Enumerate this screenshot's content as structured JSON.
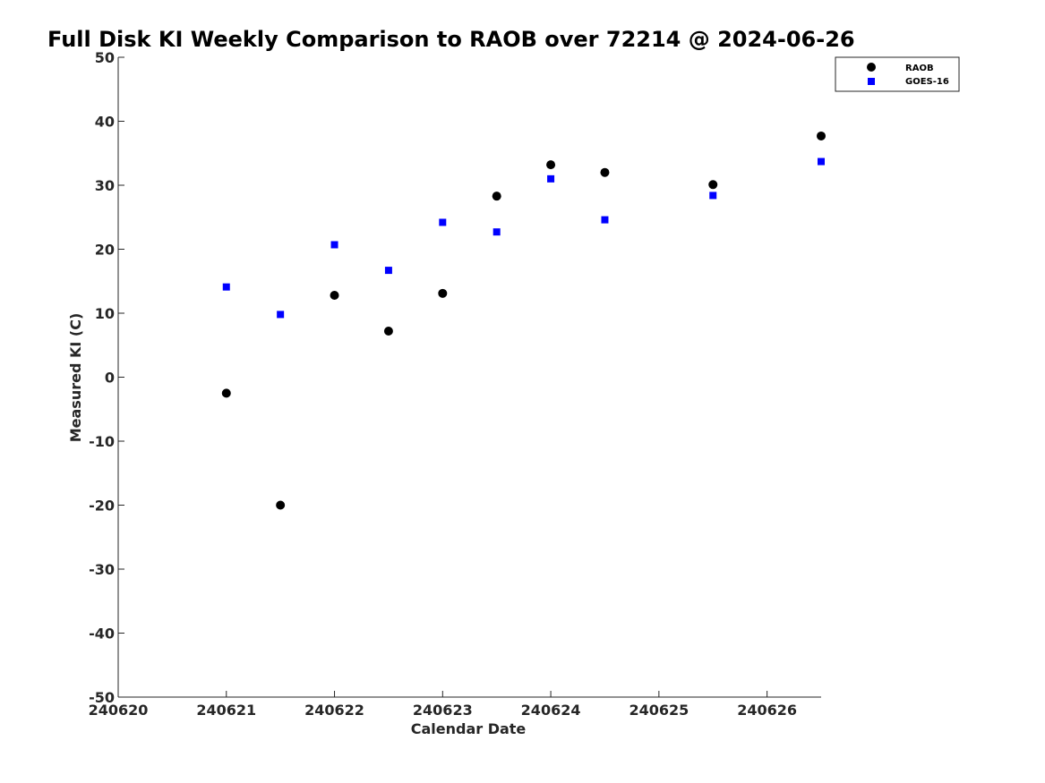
{
  "chart_data": {
    "type": "scatter",
    "title": "Full Disk KI Weekly Comparison to RAOB over 72214 @ 2024-06-26",
    "xlabel": "Calendar Date",
    "ylabel": "Measured KI (C)",
    "xlim": [
      240620,
      240626.5
    ],
    "ylim": [
      -50,
      50
    ],
    "xticks": [
      240620,
      240621,
      240622,
      240623,
      240624,
      240625,
      240626
    ],
    "xtick_labels": [
      "240620",
      "240621",
      "240622",
      "240623",
      "240624",
      "240625",
      "240626"
    ],
    "yticks": [
      -50,
      -40,
      -30,
      -20,
      -10,
      0,
      10,
      20,
      30,
      40,
      50
    ],
    "ytick_labels": [
      "-50",
      "-40",
      "-30",
      "-20",
      "-10",
      "0",
      "10",
      "20",
      "30",
      "40",
      "50"
    ],
    "grid": false,
    "legend_position": "top-right",
    "series": [
      {
        "name": "RAOB",
        "marker": "circle",
        "color": "#000000",
        "x": [
          240621,
          240621.5,
          240622,
          240622.5,
          240623,
          240623.5,
          240624,
          240624.5,
          240625.5,
          240626.5
        ],
        "y": [
          -2.5,
          -20,
          12.8,
          7.2,
          13.1,
          28.3,
          33.2,
          32.0,
          30.1,
          37.7
        ]
      },
      {
        "name": "GOES-16",
        "marker": "square",
        "color": "#0000ff",
        "x": [
          240621,
          240621.5,
          240622,
          240622.5,
          240623,
          240623.5,
          240624,
          240624.5,
          240625.5,
          240626.5
        ],
        "y": [
          14.1,
          9.8,
          20.7,
          16.7,
          24.2,
          22.7,
          31.0,
          24.6,
          28.4,
          33.7
        ]
      }
    ]
  }
}
